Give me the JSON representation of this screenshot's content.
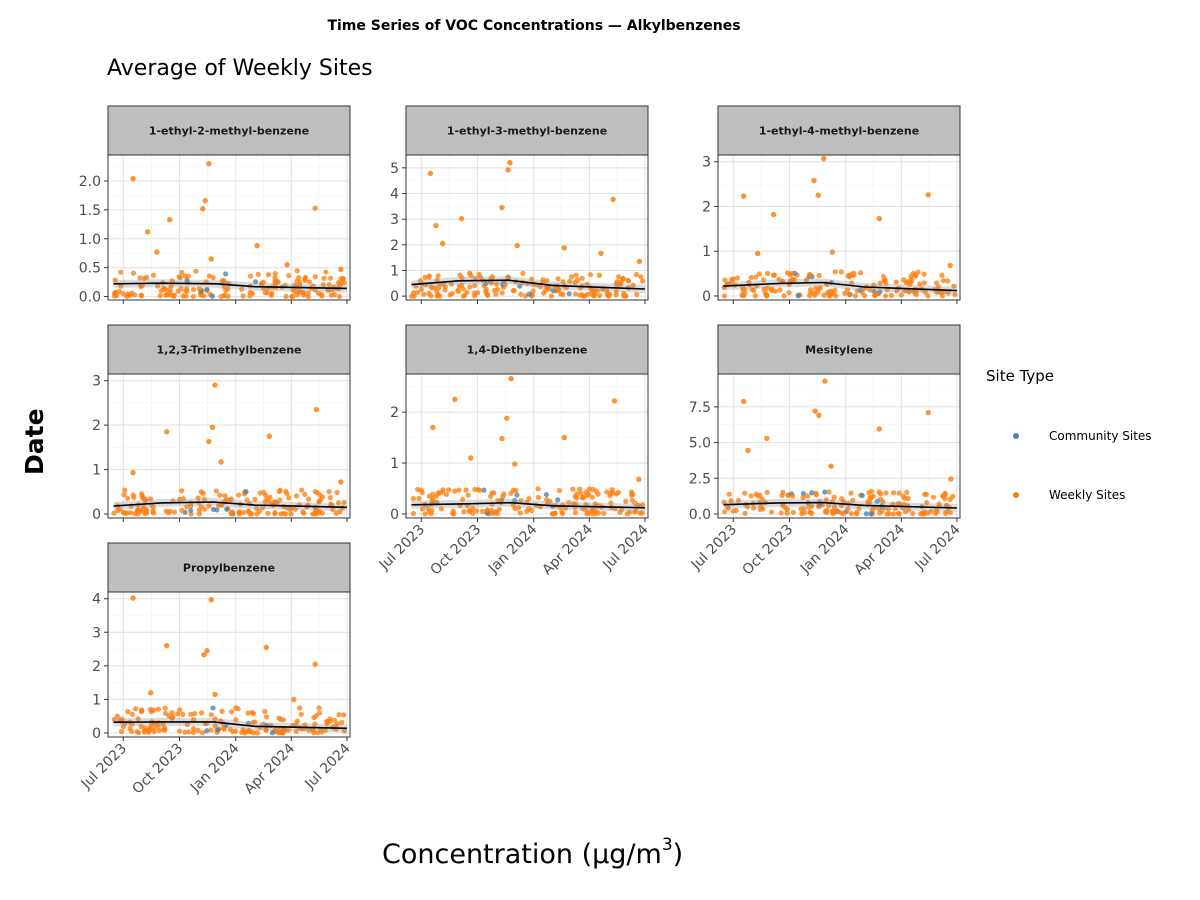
{
  "title": "Time Series of VOC Concentrations — Alkylbenzenes",
  "subtitle": "Average of Weekly Sites",
  "xlabel": "Concentration (µg/m",
  "xlabel_sup": "3",
  "xlabel_close": ")",
  "ylabel": "Date",
  "legend": {
    "title": "Site Type",
    "items": [
      {
        "label": "Community Sites",
        "color": "#4682b4"
      },
      {
        "label": "Weekly Sites",
        "color": "#ff7f0e"
      }
    ]
  },
  "colors": {
    "community": "#4682b4",
    "weekly": "#ff7f0e",
    "trend": "#000000",
    "strip": "#bebebe",
    "grid": "#e3e3e3"
  },
  "chart_data": {
    "type": "scatter",
    "x_ticks": [
      "Jul 2023",
      "Oct 2023",
      "Jan 2024",
      "Apr 2024",
      "Jul 2024"
    ],
    "x_tick_dates": [
      "2023-07-01",
      "2023-10-01",
      "2024-01-01",
      "2024-04-01",
      "2024-07-01"
    ],
    "xlim": [
      "2023-06-06",
      "2024-07-06"
    ],
    "grid": true,
    "legend_position": "right",
    "panels": [
      {
        "name": "1-ethyl-2-methyl-benzene",
        "ylim": [
          -0.06,
          2.45
        ],
        "yticks": [
          0.0,
          0.5,
          1.0,
          1.5,
          2.0
        ],
        "ytick_labels": [
          "0.0",
          "0.5",
          "1.0",
          "1.5",
          "2.0"
        ],
        "trend": [
          [
            "2023-06-15",
            0.22
          ],
          [
            "2023-09-01",
            0.23
          ],
          [
            "2023-12-01",
            0.22
          ],
          [
            "2024-02-01",
            0.17
          ],
          [
            "2024-07-01",
            0.14
          ]
        ],
        "outliers": [
          [
            "2023-07-17",
            2.04
          ],
          [
            "2023-08-10",
            1.12
          ],
          [
            "2023-08-25",
            0.77
          ],
          [
            "2023-09-15",
            1.33
          ],
          [
            "2023-11-08",
            1.52
          ],
          [
            "2023-11-12",
            1.66
          ],
          [
            "2023-11-18",
            2.3
          ],
          [
            "2023-11-22",
            0.65
          ],
          [
            "2024-02-05",
            0.88
          ],
          [
            "2024-03-25",
            0.55
          ],
          [
            "2024-05-10",
            1.53
          ],
          [
            "2024-06-21",
            0.47
          ]
        ],
        "bulk_max": 0.45
      },
      {
        "name": "1-ethyl-3-methyl-benzene",
        "ylim": [
          -0.15,
          5.5
        ],
        "yticks": [
          0,
          1,
          2,
          3,
          4,
          5
        ],
        "ytick_labels": [
          "0",
          "1",
          "2",
          "3",
          "4",
          "5"
        ],
        "trend": [
          [
            "2023-06-15",
            0.45
          ],
          [
            "2023-09-01",
            0.6
          ],
          [
            "2023-11-20",
            0.62
          ],
          [
            "2024-02-01",
            0.42
          ],
          [
            "2024-07-01",
            0.28
          ]
        ],
        "outliers": [
          [
            "2023-07-16",
            4.78
          ],
          [
            "2023-07-25",
            2.75
          ],
          [
            "2023-08-05",
            2.05
          ],
          [
            "2023-09-05",
            3.02
          ],
          [
            "2023-11-10",
            3.45
          ],
          [
            "2023-11-20",
            4.92
          ],
          [
            "2023-11-23",
            5.2
          ],
          [
            "2023-12-05",
            1.97
          ],
          [
            "2024-02-20",
            1.88
          ],
          [
            "2024-05-10",
            3.77
          ],
          [
            "2024-04-20",
            1.67
          ],
          [
            "2024-06-22",
            1.35
          ]
        ],
        "bulk_max": 0.9
      },
      {
        "name": "1-ethyl-4-methyl-benzene",
        "ylim": [
          -0.09,
          3.15
        ],
        "yticks": [
          0,
          1,
          2,
          3
        ],
        "ytick_labels": [
          "0",
          "1",
          "2",
          "3"
        ],
        "trend": [
          [
            "2023-06-15",
            0.22
          ],
          [
            "2023-09-15",
            0.28
          ],
          [
            "2023-11-25",
            0.3
          ],
          [
            "2024-02-01",
            0.2
          ],
          [
            "2024-07-01",
            0.12
          ]
        ],
        "outliers": [
          [
            "2023-07-18",
            2.23
          ],
          [
            "2023-08-10",
            0.95
          ],
          [
            "2023-09-05",
            1.82
          ],
          [
            "2023-11-10",
            2.58
          ],
          [
            "2023-11-17",
            2.25
          ],
          [
            "2023-11-26",
            3.07
          ],
          [
            "2023-12-10",
            0.98
          ],
          [
            "2024-02-25",
            1.73
          ],
          [
            "2024-05-15",
            2.26
          ],
          [
            "2024-06-20",
            0.68
          ]
        ],
        "bulk_max": 0.55
      },
      {
        "name": "1,2,3-Trimethylbenzene",
        "ylim": [
          -0.09,
          3.15
        ],
        "yticks": [
          0,
          1,
          2,
          3
        ],
        "ytick_labels": [
          "0",
          "1",
          "2",
          "3"
        ],
        "trend": [
          [
            "2023-06-15",
            0.18
          ],
          [
            "2023-09-01",
            0.25
          ],
          [
            "2023-11-25",
            0.27
          ],
          [
            "2024-02-01",
            0.2
          ],
          [
            "2024-07-01",
            0.15
          ]
        ],
        "outliers": [
          [
            "2023-07-17",
            0.93
          ],
          [
            "2023-09-10",
            1.85
          ],
          [
            "2023-11-18",
            1.63
          ],
          [
            "2023-11-24",
            1.95
          ],
          [
            "2023-11-28",
            2.9
          ],
          [
            "2023-12-08",
            1.17
          ],
          [
            "2024-02-25",
            1.75
          ],
          [
            "2024-05-12",
            2.35
          ],
          [
            "2024-06-21",
            0.72
          ]
        ],
        "bulk_max": 0.55
      },
      {
        "name": "1,4-Diethylbenzene",
        "ylim": [
          -0.08,
          2.75
        ],
        "yticks": [
          0,
          1,
          2
        ],
        "ytick_labels": [
          "0",
          "1",
          "2"
        ],
        "trend": [
          [
            "2023-06-15",
            0.18
          ],
          [
            "2023-09-15",
            0.2
          ],
          [
            "2023-11-25",
            0.22
          ],
          [
            "2024-02-01",
            0.16
          ],
          [
            "2024-07-01",
            0.12
          ]
        ],
        "outliers": [
          [
            "2023-07-20",
            1.7
          ],
          [
            "2023-08-25",
            2.25
          ],
          [
            "2023-09-20",
            1.1
          ],
          [
            "2023-11-10",
            1.48
          ],
          [
            "2023-11-18",
            1.88
          ],
          [
            "2023-11-25",
            2.66
          ],
          [
            "2023-12-01",
            0.98
          ],
          [
            "2024-02-20",
            1.5
          ],
          [
            "2024-05-12",
            2.22
          ],
          [
            "2024-06-21",
            0.68
          ]
        ],
        "bulk_max": 0.5
      },
      {
        "name": "Mesitylene",
        "ylim": [
          -0.28,
          9.8
        ],
        "yticks": [
          0.0,
          2.5,
          5.0,
          7.5
        ],
        "ytick_labels": [
          "0.0",
          "2.5",
          "5.0",
          "7.5"
        ],
        "trend": [
          [
            "2023-06-15",
            0.65
          ],
          [
            "2023-09-15",
            0.78
          ],
          [
            "2023-11-25",
            0.8
          ],
          [
            "2024-02-01",
            0.6
          ],
          [
            "2024-07-01",
            0.42
          ]
        ],
        "outliers": [
          [
            "2023-07-18",
            7.88
          ],
          [
            "2023-07-25",
            4.45
          ],
          [
            "2023-08-25",
            5.3
          ],
          [
            "2023-11-12",
            7.2
          ],
          [
            "2023-11-18",
            6.9
          ],
          [
            "2023-11-28",
            9.3
          ],
          [
            "2023-12-08",
            3.35
          ],
          [
            "2024-02-25",
            5.95
          ],
          [
            "2024-05-15",
            7.1
          ],
          [
            "2024-06-21",
            2.45
          ]
        ],
        "bulk_max": 1.6
      },
      {
        "name": "Propylbenzene",
        "ylim": [
          -0.12,
          4.2
        ],
        "yticks": [
          0,
          1,
          2,
          3,
          4
        ],
        "ytick_labels": [
          "0",
          "1",
          "2",
          "3",
          "4"
        ],
        "trend": [
          [
            "2023-06-15",
            0.32
          ],
          [
            "2023-09-01",
            0.33
          ],
          [
            "2023-11-25",
            0.33
          ],
          [
            "2024-02-01",
            0.2
          ],
          [
            "2024-07-01",
            0.14
          ]
        ],
        "outliers": [
          [
            "2023-07-17",
            4.02
          ],
          [
            "2023-08-15",
            1.2
          ],
          [
            "2023-09-10",
            2.6
          ],
          [
            "2023-11-10",
            2.33
          ],
          [
            "2023-11-15",
            2.45
          ],
          [
            "2023-11-22",
            3.97
          ],
          [
            "2023-11-28",
            1.15
          ],
          [
            "2024-02-20",
            2.55
          ],
          [
            "2024-05-10",
            2.05
          ],
          [
            "2024-04-05",
            1.0
          ]
        ],
        "bulk_max": 0.75
      }
    ]
  }
}
